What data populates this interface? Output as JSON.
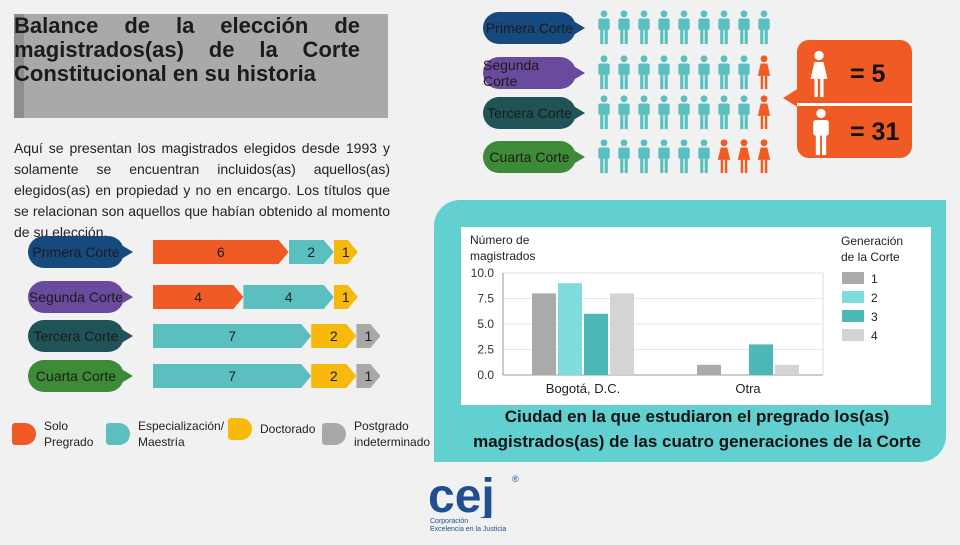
{
  "title": "Balance de la elección de magistrados(as) de la Corte Constitucional en su historia",
  "intro": "Aquí se presentan los magistrados elegidos desde 1993 y solamente se encuentran incluidos(as) aquellos(as) elegidos(as) en propiedad y no en encargo. Los títulos que se relacionan son aquellos que habían obtenido al momento de su elección.",
  "colors": {
    "pregrado": "#f05a24",
    "especializacion": "#5bbfbf",
    "doctorado": "#f8b90f",
    "indeterminado": "#a8a8a8",
    "woman": "#f05a24",
    "man": "#5bbfbf"
  },
  "cortes": [
    {
      "label": "Primera Corte",
      "men": 9,
      "women": 0
    },
    {
      "label": "Segunda Corte",
      "men": 8,
      "women": 1
    },
    {
      "label": "Tercera Corte",
      "men": 8,
      "women": 1
    },
    {
      "label": "Cuarta Corte",
      "men": 6,
      "women": 3
    }
  ],
  "summary": {
    "women": "= 5",
    "men": "= 31",
    "woman_icon": "woman-icon",
    "man_icon": "man-icon"
  },
  "education": {
    "rows": [
      {
        "label": "Primera Corte",
        "pregrado": 6,
        "especializacion": 2,
        "doctorado": 1,
        "indeterminado": 0
      },
      {
        "label": "Segunda Corte",
        "pregrado": 4,
        "especializacion": 4,
        "doctorado": 1,
        "indeterminado": 0
      },
      {
        "label": "Tercera Corte",
        "pregrado": 0,
        "especializacion": 7,
        "doctorado": 2,
        "indeterminado": 1
      },
      {
        "label": "Cuarta Corte",
        "pregrado": 0,
        "especializacion": 7,
        "doctorado": 2,
        "indeterminado": 1
      }
    ],
    "legend": {
      "pregrado": "Solo\nPregrado",
      "especializacion": "Especialización/\nMaestría",
      "doctorado": "Doctorado",
      "indeterminado": "Postgrado\nindeterminado"
    }
  },
  "chart_data": {
    "type": "bar",
    "categories": [
      "Bogotá, D.C.",
      "Otra"
    ],
    "series": [
      {
        "name": "1",
        "values": [
          8,
          1
        ],
        "color": "#aaaaaa"
      },
      {
        "name": "2",
        "values": [
          9,
          0
        ],
        "color": "#7fdcdc"
      },
      {
        "name": "3",
        "values": [
          6,
          3
        ],
        "color": "#4db8b8"
      },
      {
        "name": "4",
        "values": [
          8,
          1
        ],
        "color": "#d4d4d4"
      }
    ],
    "ylabel": "Número de\nmagistrados",
    "legend_title": "Generación\nde la Corte",
    "yticks": [
      "10.0",
      "7.5",
      "5.0",
      "2.5",
      "0.0"
    ],
    "ylim": [
      0,
      10
    ],
    "legend_position": "right",
    "title": "Ciudad en la que estudiaron el pregrado los(as) magistrados(as) de las cuatro generaciones de la Corte"
  },
  "logo": {
    "text": "cej",
    "registered": "®",
    "subtitle": "Corporación\nExcelencia en la Justicia"
  }
}
